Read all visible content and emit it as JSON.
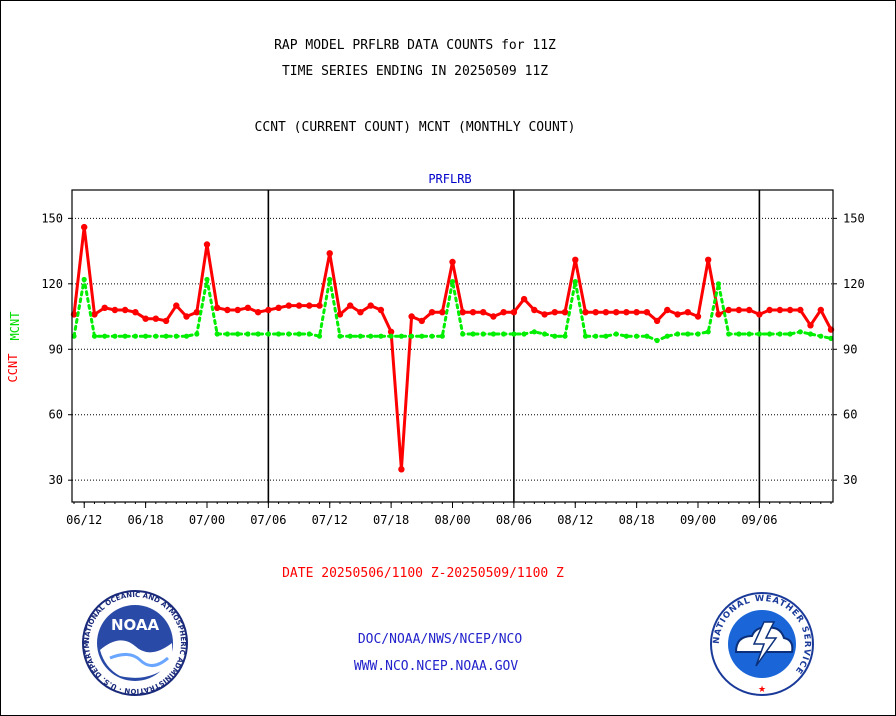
{
  "header": {
    "title_line1": "RAP MODEL PRFLRB DATA COUNTS for 11Z",
    "title_line2": "TIME SERIES ENDING IN 20250509 11Z",
    "subtitle": "CCNT (CURRENT COUNT) MCNT (MONTHLY COUNT)"
  },
  "footer": {
    "date_range": "DATE 20250506/1100 Z-20250509/1100 Z",
    "org": "DOC/NOAA/NWS/NCEP/NCO",
    "url": "WWW.NCO.NCEP.NOAA.GOV"
  },
  "logos": {
    "noaa_text": "NOAA",
    "noaa_ring": "NATIONAL OCEANIC AND ATMOSPHERIC ADMINISTRATION · U.S. DEPARTMENT OF COMMERCE",
    "nws_ring": "NATIONAL WEATHER SERVICE"
  },
  "colors": {
    "ccnt": "#ff0000",
    "mcnt": "#00ee00",
    "panel_label": "#0000cc",
    "title": "#000000"
  },
  "chart_data": {
    "type": "line",
    "title": "PRFLRB",
    "ylabel_left": [
      "CCNT",
      "MCNT"
    ],
    "ylim": [
      20,
      163
    ],
    "yticks": [
      30,
      60,
      90,
      120,
      150
    ],
    "grid_y": true,
    "x_tick_labels": [
      "06/12",
      "06/18",
      "07/00",
      "07/06",
      "07/12",
      "07/18",
      "08/00",
      "08/06",
      "08/12",
      "08/18",
      "09/00",
      "09/06"
    ],
    "x_day_dividers": [
      "07/06",
      "08/06",
      "09/06"
    ],
    "series": [
      {
        "name": "CCNT",
        "color": "#ff0000",
        "style": "solid",
        "values": [
          106,
          146,
          106,
          109,
          108,
          108,
          107,
          104,
          104,
          103,
          110,
          105,
          107,
          138,
          109,
          108,
          108,
          109,
          107,
          108,
          109,
          110,
          110,
          110,
          110,
          134,
          106,
          110,
          107,
          110,
          108,
          98,
          35,
          105,
          103,
          107,
          107,
          130,
          107,
          107,
          107,
          105,
          107,
          107,
          113,
          108,
          106,
          107,
          107,
          131,
          107,
          107,
          107,
          107,
          107,
          107,
          107,
          103,
          108,
          106,
          107,
          105,
          131,
          106,
          108,
          108,
          108,
          106,
          108,
          108,
          108,
          108,
          101,
          108,
          99
        ]
      },
      {
        "name": "MCNT",
        "color": "#00ee00",
        "style": "dotted",
        "values": [
          96,
          122,
          96,
          96,
          96,
          96,
          96,
          96,
          96,
          96,
          96,
          96,
          97,
          122,
          97,
          97,
          97,
          97,
          97,
          97,
          97,
          97,
          97,
          97,
          96,
          122,
          96,
          96,
          96,
          96,
          96,
          96,
          96,
          96,
          96,
          96,
          96,
          121,
          97,
          97,
          97,
          97,
          97,
          97,
          97,
          98,
          97,
          96,
          96,
          121,
          96,
          96,
          96,
          97,
          96,
          96,
          96,
          94,
          96,
          97,
          97,
          97,
          98,
          120,
          97,
          97,
          97,
          97,
          97,
          97,
          97,
          98,
          97,
          96,
          95
        ]
      }
    ]
  }
}
